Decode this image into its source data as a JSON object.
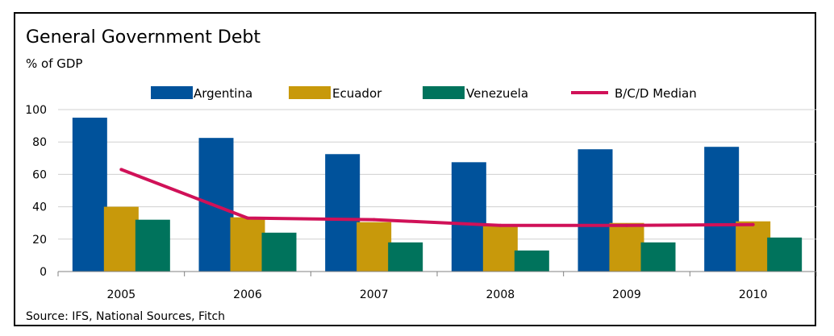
{
  "chart_data": {
    "type": "bar",
    "title": "General Government Debt",
    "subtitle": "% of GDP",
    "categories": [
      "2005",
      "2006",
      "2007",
      "2008",
      "2009",
      "2010"
    ],
    "series": [
      {
        "name": "Argentina",
        "kind": "bar",
        "color": "#00529B",
        "values": [
          95,
          82.5,
          72.5,
          67.5,
          75.5,
          77
        ]
      },
      {
        "name": "Ecuador",
        "kind": "bar",
        "color": "#C8990B",
        "values": [
          40,
          33.5,
          30.5,
          28,
          30,
          31
        ]
      },
      {
        "name": "Venezuela",
        "kind": "bar",
        "color": "#00735C",
        "values": [
          32,
          24,
          18,
          13,
          18,
          21
        ]
      },
      {
        "name": "B/C/D Median",
        "kind": "line",
        "color": "#D01158",
        "values": [
          63,
          33,
          32,
          28.5,
          28.5,
          29
        ]
      }
    ],
    "yticks": [
      0,
      20,
      40,
      60,
      80,
      100
    ],
    "ylim": [
      0,
      100
    ],
    "grid": true,
    "legend_position": "top",
    "source": "Source: IFS, National Sources, Fitch"
  }
}
